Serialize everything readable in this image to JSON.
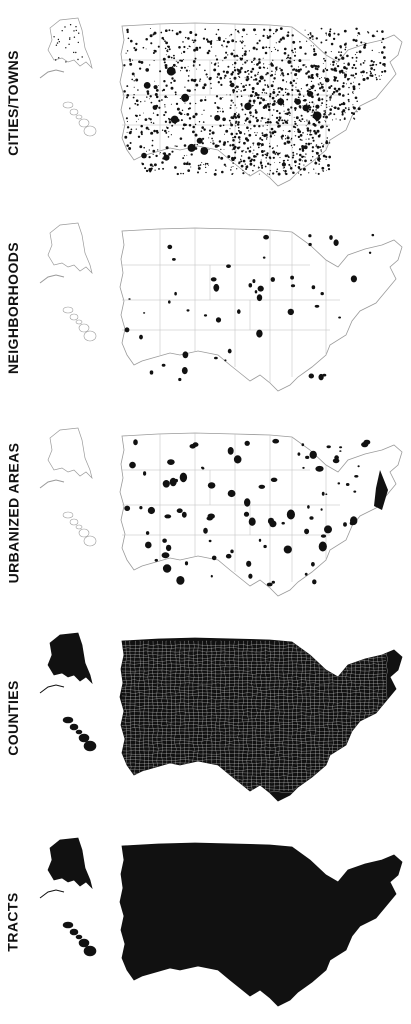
{
  "panels": [
    {
      "id": "cities",
      "label": "CITIES/TOWNS",
      "style": "dots",
      "density": "very-dense",
      "color": "#111111"
    },
    {
      "id": "neighborhoods",
      "label": "NEIGHBORHOODS",
      "style": "outline-sparse",
      "density": "sparse",
      "color": "#111111"
    },
    {
      "id": "urbanized",
      "label": "URBANIZED AREAS",
      "style": "outline-clusters",
      "density": "medium",
      "color": "#111111"
    },
    {
      "id": "counties",
      "label": "COUNTIES",
      "style": "filled-grid",
      "density": "filled",
      "color": "#111111"
    },
    {
      "id": "tracts",
      "label": "TRACTS",
      "style": "filled",
      "density": "filled",
      "color": "#111111"
    }
  ]
}
